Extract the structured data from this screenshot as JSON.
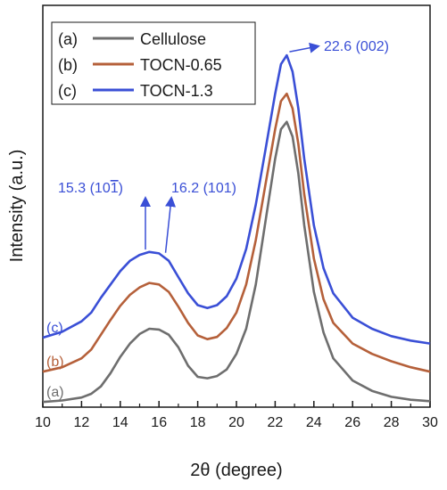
{
  "chart_data": {
    "type": "line",
    "xlabel": "2θ (degree)",
    "ylabel": "Intensity (a.u.)",
    "xlim": [
      10,
      30
    ],
    "xticks": [
      10,
      12,
      14,
      16,
      18,
      20,
      22,
      24,
      26,
      28,
      30
    ],
    "yticks_shown": false,
    "grid": false,
    "legend_position": "top-left",
    "series": [
      {
        "name": "Cellulose",
        "legend_key": "(a)",
        "curve_label": "(a)",
        "color": "#6e6e6e",
        "x": [
          10,
          11,
          12,
          12.5,
          13,
          13.5,
          14,
          14.5,
          15,
          15.5,
          16,
          16.5,
          17,
          17.5,
          18,
          18.5,
          19,
          19.5,
          20,
          20.5,
          21,
          21.5,
          22,
          22.3,
          22.6,
          22.9,
          23.2,
          23.5,
          24,
          24.5,
          25,
          26,
          27,
          28,
          29,
          30
        ],
        "y": [
          1,
          3,
          7,
          12,
          22,
          40,
          62,
          80,
          93,
          100,
          99,
          92,
          75,
          50,
          35,
          33,
          36,
          45,
          66,
          100,
          160,
          245,
          330,
          370,
          380,
          360,
          310,
          240,
          150,
          95,
          60,
          30,
          16,
          8,
          4,
          2
        ]
      },
      {
        "name": "TOCN-0.65",
        "legend_key": "(b)",
        "curve_label": "(b)",
        "color": "#b5603a",
        "x": [
          10,
          11,
          12,
          12.5,
          13,
          13.5,
          14,
          14.5,
          15,
          15.5,
          16,
          16.5,
          17,
          17.5,
          18,
          18.5,
          19,
          19.5,
          20,
          20.5,
          21,
          21.5,
          22,
          22.3,
          22.6,
          22.9,
          23.2,
          23.5,
          24,
          24.5,
          25,
          26,
          27,
          28,
          29,
          30
        ],
        "y": [
          42,
          48,
          60,
          72,
          92,
          112,
          131,
          146,
          156,
          162,
          160,
          150,
          130,
          108,
          91,
          86,
          89,
          101,
          122,
          160,
          220,
          295,
          370,
          408,
          418,
          398,
          350,
          282,
          195,
          140,
          108,
          80,
          66,
          56,
          48,
          42
        ]
      },
      {
        "name": "TOCN-1.3",
        "legend_key": "(c)",
        "curve_label": "(c)",
        "color": "#3a4fd6",
        "x": [
          10,
          11,
          12,
          12.5,
          13,
          13.5,
          14,
          14.5,
          15,
          15.5,
          16,
          16.5,
          17,
          17.5,
          18,
          18.5,
          19,
          19.5,
          20,
          20.5,
          21,
          21.5,
          22,
          22.3,
          22.6,
          22.9,
          23.2,
          23.5,
          24,
          24.5,
          25,
          26,
          27,
          28,
          29,
          30
        ],
        "y": [
          88,
          96,
          110,
          122,
          142,
          160,
          178,
          192,
          200,
          204,
          202,
          192,
          170,
          148,
          132,
          128,
          132,
          144,
          168,
          208,
          268,
          342,
          418,
          458,
          470,
          448,
          398,
          330,
          240,
          182,
          148,
          115,
          100,
          90,
          84,
          80
        ]
      }
    ],
    "annotations": [
      {
        "text": "22.6 (002)",
        "x": 22.6,
        "series": "TOCN-1.3",
        "color": "#3a4fd6"
      },
      {
        "text": "15.3 (10",
        "overline_digit": "1",
        "close": ")",
        "x": 15.3,
        "series": "TOCN-1.3",
        "color": "#3a4fd6"
      },
      {
        "text": "16.2 (101)",
        "x": 16.2,
        "series": "TOCN-1.3",
        "color": "#3a4fd6"
      }
    ]
  }
}
